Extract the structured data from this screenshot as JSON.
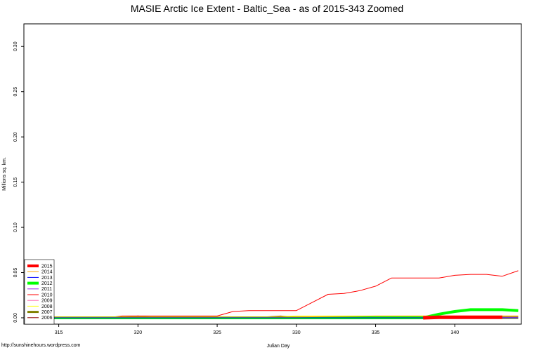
{
  "chart_data": {
    "type": "line",
    "title": "MASIE Arctic Ice Extent - Baltic_Sea - as of 2015-343 Zoomed",
    "xlabel": "Julian Day",
    "ylabel": "Millions sq. km.",
    "xlim": [
      312.8,
      344.2
    ],
    "ylim": [
      -0.007,
      0.325
    ],
    "x_ticks": [
      315,
      320,
      325,
      330,
      335,
      340
    ],
    "y_ticks": [
      0.0,
      0.05,
      0.1,
      0.15,
      0.2,
      0.25,
      0.3
    ],
    "y_tick_labels": [
      "0.00",
      "0.05",
      "0.10",
      "0.15",
      "0.20",
      "0.25",
      "0.30"
    ],
    "legend_position": "bottom-left",
    "source_note": "http://sunshinehours.wordpress.com",
    "series": [
      {
        "name": "2015",
        "color": "#ff0000",
        "width": 5,
        "x": [
          338,
          339,
          340,
          341,
          342,
          343
        ],
        "y": [
          0,
          0.0005,
          0.0005,
          0.0005,
          0.0005,
          0.0005
        ]
      },
      {
        "name": "2014",
        "color": "#ffa500",
        "width": 1,
        "x": [
          313,
          315,
          320,
          325,
          330,
          335,
          337,
          340,
          344
        ],
        "y": [
          0.001,
          0.001,
          0.001,
          0.001,
          0.001,
          0.002,
          0.002,
          0.002,
          0.002
        ]
      },
      {
        "name": "2013",
        "color": "#0000ff",
        "width": 1,
        "x": [
          313,
          344
        ],
        "y": [
          0,
          0
        ]
      },
      {
        "name": "2012",
        "color": "#00ff00",
        "width": 4,
        "x": [
          313,
          338,
          339,
          340,
          341,
          342,
          343,
          344
        ],
        "y": [
          0,
          0,
          0.004,
          0.007,
          0.009,
          0.009,
          0.009,
          0.008
        ]
      },
      {
        "name": "2011",
        "color": "#a020f0",
        "width": 1,
        "x": [
          313,
          344
        ],
        "y": [
          0,
          0
        ]
      },
      {
        "name": "2010",
        "color": "#ff0000",
        "width": 1,
        "x": [
          313,
          318,
          319,
          320,
          321,
          325,
          326,
          327,
          328,
          329,
          330,
          331,
          332,
          333,
          334,
          335,
          336,
          337,
          338,
          339,
          340,
          341,
          342,
          343,
          344
        ],
        "y": [
          0,
          0,
          0.002,
          0.002,
          0.002,
          0.002,
          0.007,
          0.008,
          0.008,
          0.008,
          0.008,
          0.017,
          0.026,
          0.027,
          0.03,
          0.035,
          0.044,
          0.044,
          0.044,
          0.044,
          0.047,
          0.048,
          0.048,
          0.046,
          0.052
        ]
      },
      {
        "name": "2009",
        "color": "#ff69b4",
        "width": 1,
        "x": [
          313,
          344
        ],
        "y": [
          0.0003,
          0.0003
        ]
      },
      {
        "name": "2008",
        "color": "#ffff00",
        "width": 1,
        "x": [
          313,
          328,
          330,
          335,
          344
        ],
        "y": [
          0.001,
          0.001,
          0.002,
          0.002,
          0.002
        ]
      },
      {
        "name": "2007",
        "color": "#808000",
        "width": 3,
        "x": [
          313,
          344
        ],
        "y": [
          0,
          0
        ]
      },
      {
        "name": "2006",
        "color": "#8b0000",
        "width": 1,
        "x": [
          313,
          319,
          320,
          321,
          325,
          328,
          329,
          330,
          344
        ],
        "y": [
          0.001,
          0.001,
          0.002,
          0.001,
          0.001,
          0.001,
          0.002,
          0.001,
          0.001
        ]
      }
    ]
  }
}
